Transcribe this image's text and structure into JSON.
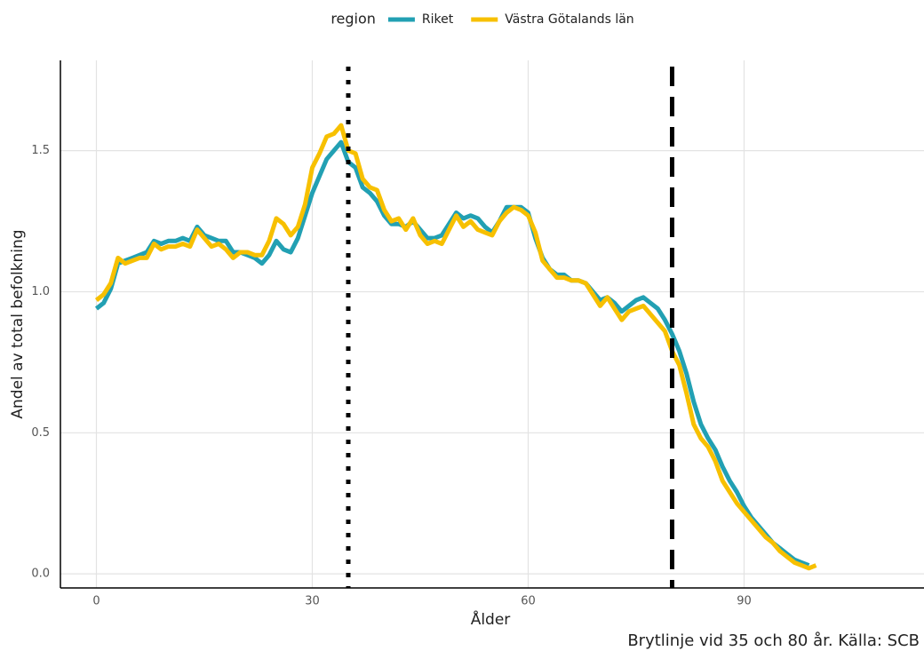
{
  "chart_data": {
    "type": "line",
    "legend_title": "region",
    "x_label": "Ålder",
    "y_label": "Andel av total befolkning",
    "caption": "Brytlinje vid 35 och 80 år. Källa: SCB",
    "x": [
      0,
      1,
      2,
      3,
      4,
      5,
      6,
      7,
      8,
      9,
      10,
      11,
      12,
      13,
      14,
      15,
      16,
      17,
      18,
      19,
      20,
      21,
      22,
      23,
      24,
      25,
      26,
      27,
      28,
      29,
      30,
      31,
      32,
      33,
      34,
      35,
      36,
      37,
      38,
      39,
      40,
      41,
      42,
      43,
      44,
      45,
      46,
      47,
      48,
      49,
      50,
      51,
      52,
      53,
      54,
      55,
      56,
      57,
      58,
      59,
      60,
      61,
      62,
      63,
      64,
      65,
      66,
      67,
      68,
      69,
      70,
      71,
      72,
      73,
      74,
      75,
      76,
      77,
      78,
      79,
      80,
      81,
      82,
      83,
      84,
      85,
      86,
      87,
      88,
      89,
      90,
      91,
      92,
      93,
      94,
      95,
      96,
      97,
      98,
      99,
      100
    ],
    "series": [
      {
        "name": "Riket",
        "color": "#22a0b3",
        "values": [
          0.94,
          0.96,
          1.01,
          1.1,
          1.11,
          1.12,
          1.13,
          1.14,
          1.18,
          1.17,
          1.18,
          1.18,
          1.19,
          1.18,
          1.23,
          1.2,
          1.19,
          1.18,
          1.18,
          1.14,
          1.14,
          1.13,
          1.12,
          1.1,
          1.13,
          1.18,
          1.15,
          1.14,
          1.19,
          1.27,
          1.35,
          1.41,
          1.47,
          1.5,
          1.53,
          1.46,
          1.44,
          1.37,
          1.35,
          1.32,
          1.27,
          1.24,
          1.24,
          1.23,
          1.25,
          1.22,
          1.19,
          1.19,
          1.2,
          1.24,
          1.28,
          1.26,
          1.27,
          1.26,
          1.23,
          1.21,
          1.25,
          1.3,
          1.3,
          1.3,
          1.28,
          1.19,
          1.12,
          1.08,
          1.06,
          1.06,
          1.04,
          1.04,
          1.03,
          1.0,
          0.97,
          0.98,
          0.96,
          0.93,
          0.95,
          0.97,
          0.98,
          0.96,
          0.94,
          0.9,
          0.85,
          0.79,
          0.71,
          0.61,
          0.53,
          0.48,
          0.44,
          0.38,
          0.33,
          0.29,
          0.24,
          0.2,
          0.17,
          0.14,
          0.11,
          0.09,
          0.07,
          0.05,
          0.04,
          0.03,
          null
        ]
      },
      {
        "name": "Västra Götalands län",
        "color": "#f7c000",
        "values": [
          0.97,
          0.99,
          1.03,
          1.12,
          1.1,
          1.11,
          1.12,
          1.12,
          1.17,
          1.15,
          1.16,
          1.16,
          1.17,
          1.16,
          1.22,
          1.19,
          1.16,
          1.17,
          1.15,
          1.12,
          1.14,
          1.14,
          1.13,
          1.13,
          1.18,
          1.26,
          1.24,
          1.2,
          1.23,
          1.31,
          1.44,
          1.49,
          1.55,
          1.56,
          1.59,
          1.5,
          1.49,
          1.4,
          1.37,
          1.36,
          1.29,
          1.25,
          1.26,
          1.22,
          1.26,
          1.2,
          1.17,
          1.18,
          1.17,
          1.22,
          1.27,
          1.23,
          1.25,
          1.22,
          1.21,
          1.2,
          1.25,
          1.28,
          1.3,
          1.29,
          1.27,
          1.21,
          1.11,
          1.08,
          1.05,
          1.05,
          1.04,
          1.04,
          1.03,
          0.99,
          0.95,
          0.98,
          0.94,
          0.9,
          0.93,
          0.94,
          0.95,
          0.92,
          0.89,
          0.86,
          0.79,
          0.74,
          0.64,
          0.53,
          0.48,
          0.45,
          0.4,
          0.33,
          0.29,
          0.25,
          0.22,
          0.19,
          0.16,
          0.13,
          0.11,
          0.08,
          0.06,
          0.04,
          0.03,
          0.02,
          0.03
        ]
      }
    ],
    "vlines": [
      {
        "x": 35,
        "style": "dotted"
      },
      {
        "x": 80,
        "style": "dashed"
      }
    ],
    "xlim": [
      -5,
      115
    ],
    "xticks": [
      0,
      30,
      60,
      90
    ],
    "ylim": [
      -0.05,
      1.82
    ],
    "yticks": [
      {
        "value": 0,
        "label": "0.0"
      },
      0.5,
      {
        "value": 1,
        "label": "1.0"
      },
      1.5
    ],
    "grid": true,
    "legend_position": "top"
  }
}
